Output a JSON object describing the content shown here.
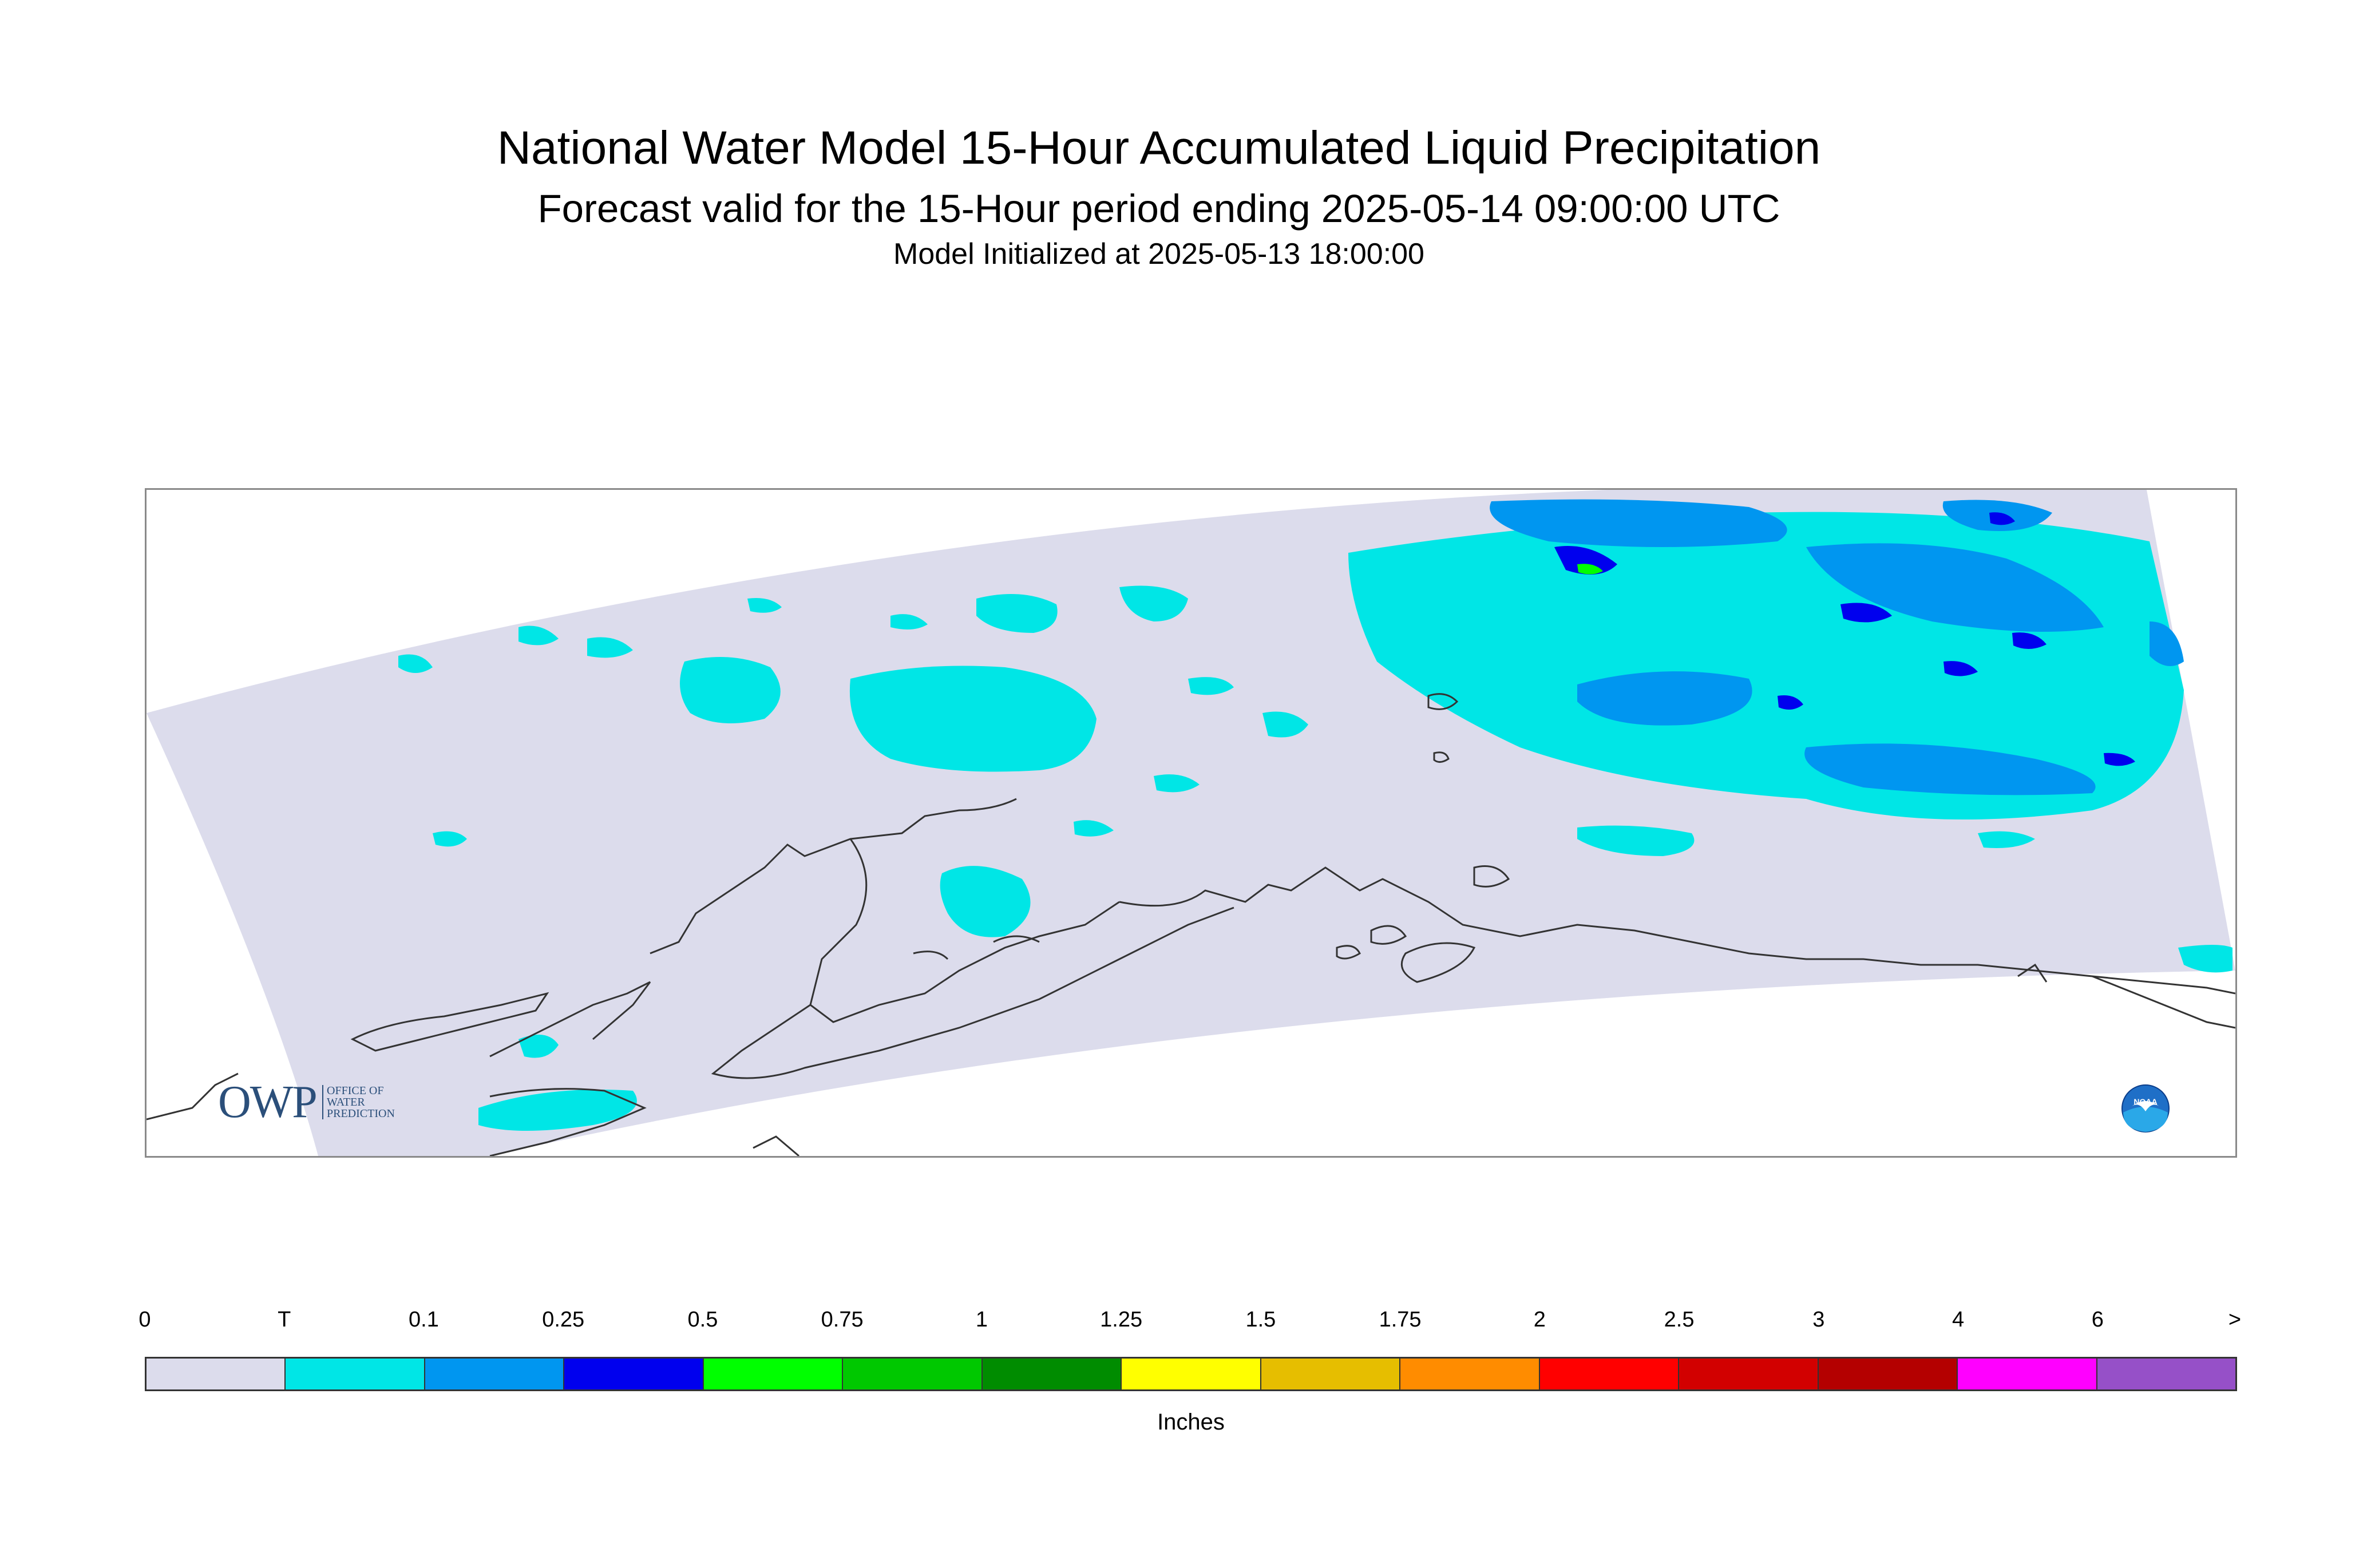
{
  "header": {
    "title": "National Water Model 15-Hour Accumulated Liquid Precipitation",
    "subtitle": "Forecast valid for the 15-Hour period ending 2025-05-14 09:00:00 UTC",
    "initialized": "Model Initialized at 2025-05-13 18:00:00"
  },
  "map": {
    "region": "Alaska",
    "background_color": "#dcdcec",
    "coastline_color": "#333333",
    "logos": {
      "owp": {
        "letters": "OWP",
        "line1": "OFFICE OF",
        "line2": "WATER",
        "line3": "PREDICTION"
      },
      "noaa": "NOAA"
    }
  },
  "legend": {
    "unit": "Inches",
    "ticks": [
      "0",
      "T",
      "0.1",
      "0.25",
      "0.5",
      "0.75",
      "1",
      "1.25",
      "1.5",
      "1.75",
      "2",
      "2.5",
      "3",
      "4",
      "6",
      ">"
    ],
    "colors": [
      "#dcdcec",
      "#00e6e6",
      "#0096f0",
      "#0000ee",
      "#00ff00",
      "#00c800",
      "#008c00",
      "#ffff00",
      "#e6be00",
      "#ff8c00",
      "#ff0000",
      "#d20000",
      "#b40000",
      "#ff00ff",
      "#9650c8"
    ]
  }
}
